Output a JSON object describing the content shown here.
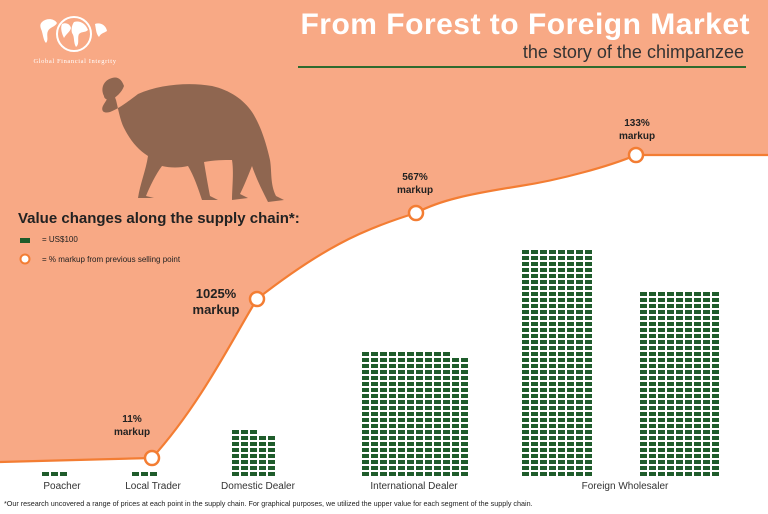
{
  "header": {
    "title": "From Forest to Foreign Market",
    "subtitle": "the story of the chimpanzee"
  },
  "logo": {
    "text": "Global Financial Integrity",
    "icon": "globe-map-icon"
  },
  "illustration": {
    "icon": "chimpanzee-silhouette-icon"
  },
  "legend": {
    "title": "Value changes along the supply chain*:",
    "unit_label": "= US$100",
    "markup_label": "= % markup from previous selling point"
  },
  "stages": [
    {
      "name": "Poacher",
      "markup": "",
      "markup_word": "",
      "value_usd": 300
    },
    {
      "name": "Local Trader",
      "markup": "11%",
      "markup_word": "markup",
      "value_usd": 333
    },
    {
      "name": "Domestic Dealer",
      "markup": "1025%",
      "markup_word": "markup",
      "value_usd": 3750
    },
    {
      "name": "International Dealer",
      "markup": "567%",
      "markup_word": "markup",
      "value_usd": 25000
    },
    {
      "name": "Foreign Wholesaler",
      "markup": "133%",
      "markup_word": "markup",
      "value_usd": 58333
    }
  ],
  "footnote": "*Our research uncovered a range of prices at each point in the supply chain. For graphical purposes, we utilized the upper value for each segment of the supply chain.",
  "colors": {
    "background_orange": "#f8a985",
    "line_orange": "#f37d33",
    "bill_green": "#1f5c2b",
    "title_white": "#ffffff",
    "chimp_brown": "#8f6650"
  }
}
